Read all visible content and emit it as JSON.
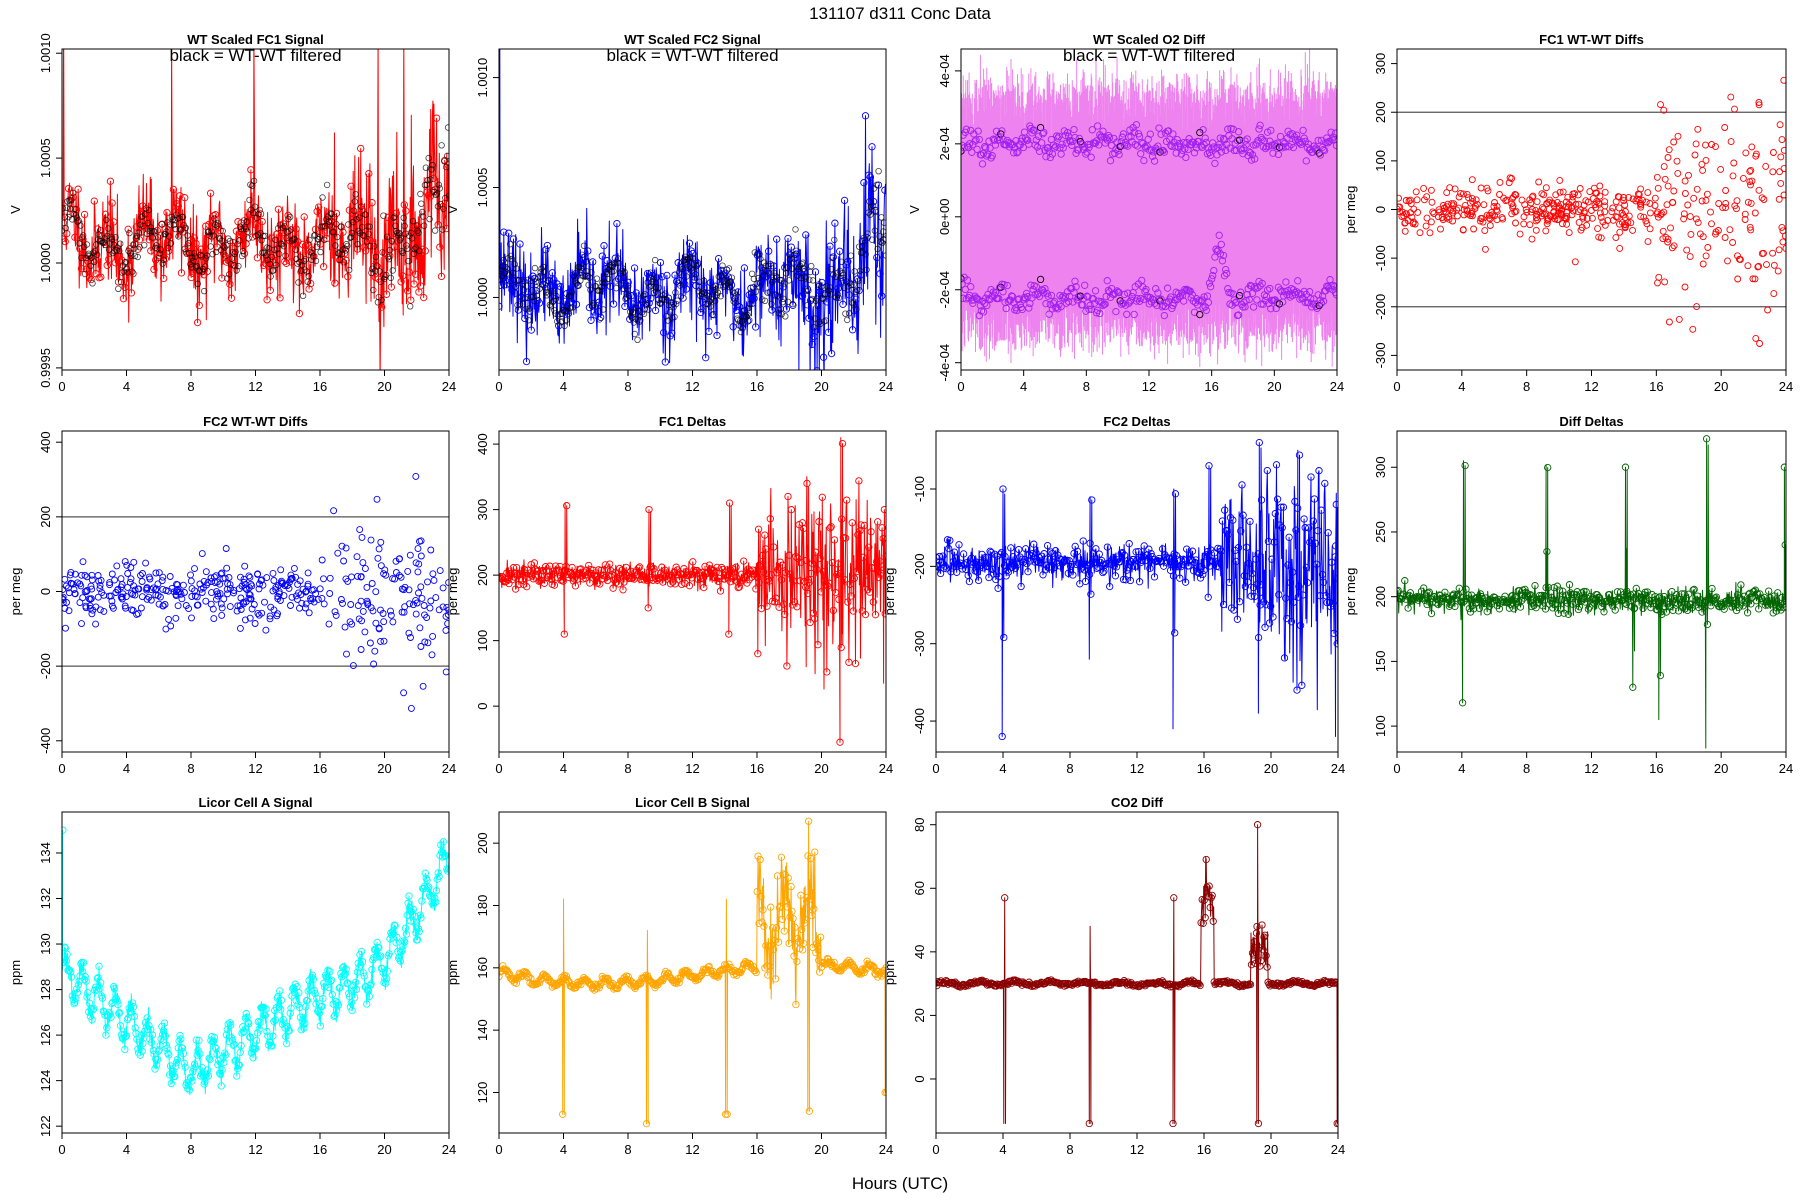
{
  "title": "131107   d311   Conc Data",
  "xlabel": "Hours (UTC)",
  "chart_data": [
    {
      "id": "wt-scaled-fc1-signal",
      "type": "line",
      "title": "WT Scaled FC1 Signal",
      "note": "black = WT-WT filtered",
      "ylabel": "V",
      "color": "#ff0000",
      "overlay_color": "#000000",
      "xlim": [
        0,
        24
      ],
      "ylim": [
        0.99949,
        1.00102
      ],
      "xticks": [
        0,
        4,
        8,
        12,
        16,
        20,
        24
      ],
      "xtick_labels": [
        "0",
        "4",
        "8",
        "12",
        "16",
        "20",
        "24"
      ],
      "yticks": [
        0.9995,
        1.0,
        1.0005,
        1.001
      ],
      "ytick_labels": [
        "0.9995",
        "1.0000",
        "1.0005",
        "1.0010"
      ],
      "gen": {
        "kind": "signal",
        "seed": 11,
        "base": 1.0001,
        "osc": 9e-05,
        "noise": 0.00011,
        "trend_end": 0.00025,
        "late_amp": 0.00015,
        "n": 720,
        "overlay_n": 420,
        "spikes": [
          [
            0.1,
            1.0012
          ],
          [
            6.8,
            1.0011
          ],
          [
            11.9,
            1.0011
          ],
          [
            16.9,
            1.00062
          ],
          [
            19.6,
            1.0011
          ],
          [
            21.2,
            1.0011
          ]
        ]
      }
    },
    {
      "id": "wt-scaled-fc2-signal",
      "type": "line",
      "title": "WT Scaled FC2 Signal",
      "note": "black = WT-WT filtered",
      "ylabel": "V",
      "color": "#0000ff",
      "overlay_color": "#000000",
      "xlim": [
        0,
        24
      ],
      "ylim": [
        0.99967,
        1.00113
      ],
      "xticks": [
        0,
        4,
        8,
        12,
        16,
        20,
        24
      ],
      "xtick_labels": [
        "0",
        "4",
        "8",
        "12",
        "16",
        "20",
        "24"
      ],
      "yticks": [
        1.0,
        1.0005,
        1.001
      ],
      "ytick_labels": [
        "1.0000",
        "1.0005",
        "1.0010"
      ],
      "gen": {
        "kind": "signal",
        "seed": 23,
        "base": 1.00003,
        "osc": 8e-05,
        "noise": 0.0001,
        "trend_end": 0.0003,
        "late_amp": 0.00012,
        "n": 720,
        "overlay_n": 420,
        "spikes": [
          [
            0.05,
            1.0012
          ],
          [
            18.6,
            0.99966
          ]
        ]
      }
    },
    {
      "id": "wt-scaled-o2-diff",
      "type": "line",
      "title": "WT Scaled O2 Diff",
      "note": "black = WT-WT filtered",
      "ylabel": "V",
      "color": "#ee82ee",
      "point_color": "#a020f0",
      "overlay_color": "#000000",
      "xlim": [
        0,
        24
      ],
      "ylim": [
        -0.00042,
        0.00046
      ],
      "xticks": [
        0,
        4,
        8,
        12,
        16,
        20,
        24
      ],
      "xtick_labels": [
        "0",
        "4",
        "8",
        "12",
        "16",
        "20",
        "24"
      ],
      "yticks": [
        -0.0004,
        -0.0002,
        0,
        0.0002,
        0.0004
      ],
      "ytick_labels": [
        "-4e-04",
        "-2e-04",
        "0e+00",
        "2e-04",
        "4e-04"
      ],
      "gen": {
        "kind": "bands",
        "seed": 37,
        "upper": 0.0002,
        "lower": -0.00022,
        "spread": 1.5e-05,
        "fill_top": 0.00033,
        "fill_bottom": -0.00031,
        "n": 700
      }
    },
    {
      "id": "fc1-wt-wt-diffs",
      "type": "scatter",
      "title": "FC1 WT-WT Diffs",
      "ylabel": "per meg",
      "color": "#ff0000",
      "xlim": [
        0,
        24
      ],
      "ylim": [
        -330,
        330
      ],
      "xticks": [
        0,
        4,
        8,
        12,
        16,
        20,
        24
      ],
      "xtick_labels": [
        "0",
        "4",
        "8",
        "12",
        "16",
        "20",
        "24"
      ],
      "yticks": [
        -300,
        -200,
        -100,
        0,
        100,
        200,
        300
      ],
      "ytick_labels": [
        "-300",
        "-200",
        "-100",
        "0",
        "100",
        "200",
        "300"
      ],
      "hlines": [
        200,
        -200
      ],
      "gen": {
        "kind": "scatter",
        "seed": 51,
        "n": 480,
        "spread_early": 30,
        "spread_late": 120,
        "late_start": 16
      }
    },
    {
      "id": "fc2-wt-wt-diffs",
      "type": "scatter",
      "title": "FC2 WT-WT Diffs",
      "ylabel": "per meg",
      "color": "#0000ff",
      "xlim": [
        0,
        24
      ],
      "ylim": [
        -430,
        430
      ],
      "xticks": [
        0,
        4,
        8,
        12,
        16,
        20,
        24
      ],
      "xtick_labels": [
        "0",
        "4",
        "8",
        "12",
        "16",
        "20",
        "24"
      ],
      "yticks": [
        -400,
        -200,
        0,
        200,
        400
      ],
      "ytick_labels": [
        "-400",
        "-200",
        "0",
        "200",
        "400"
      ],
      "hlines": [
        200,
        -200
      ],
      "gen": {
        "kind": "scatter",
        "seed": 63,
        "n": 460,
        "spread_early": 40,
        "spread_late": 100,
        "late_start": 16
      }
    },
    {
      "id": "fc1-deltas",
      "type": "line",
      "title": "FC1 Deltas",
      "ylabel": "per meg",
      "color": "#ff0000",
      "xlim": [
        0,
        24
      ],
      "ylim": [
        -70,
        420
      ],
      "xticks": [
        0,
        4,
        8,
        12,
        16,
        20,
        24
      ],
      "xtick_labels": [
        "0",
        "4",
        "8",
        "12",
        "16",
        "20",
        "24"
      ],
      "yticks": [
        0,
        100,
        200,
        300,
        400
      ],
      "ytick_labels": [
        "0",
        "100",
        "200",
        "300",
        "400"
      ],
      "gen": {
        "kind": "deltas",
        "seed": 71,
        "base": 200,
        "noise": 10,
        "n": 700,
        "late_start": 16,
        "late_noise": 55,
        "events": [
          [
            4.1,
            110,
            310
          ],
          [
            9.3,
            150,
            300
          ],
          [
            14.3,
            110,
            310
          ],
          [
            16.1,
            80,
            270
          ],
          [
            19.1,
            60,
            340
          ],
          [
            21.2,
            -55,
            410
          ],
          [
            23.9,
            35,
            300
          ]
        ]
      }
    },
    {
      "id": "fc2-deltas",
      "type": "line",
      "title": "FC2 Deltas",
      "ylabel": "per meg",
      "color": "#0000ff",
      "xlim": [
        0,
        24
      ],
      "ylim": [
        -440,
        -25
      ],
      "xticks": [
        0,
        4,
        8,
        12,
        16,
        20,
        24
      ],
      "xtick_labels": [
        "0",
        "4",
        "8",
        "12",
        "16",
        "20",
        "24"
      ],
      "yticks": [
        -400,
        -300,
        -200,
        -100
      ],
      "ytick_labels": [
        "-400",
        "-300",
        "-200",
        "-100"
      ],
      "gen": {
        "kind": "deltas",
        "seed": 83,
        "base": -195,
        "noise": 12,
        "n": 700,
        "late_start": 17,
        "late_noise": 60,
        "events": [
          [
            4.0,
            -420,
            -100
          ],
          [
            9.2,
            -320,
            -110
          ],
          [
            14.2,
            -410,
            -100
          ],
          [
            16.3,
            -240,
            -70
          ],
          [
            19.3,
            -390,
            -40
          ],
          [
            21.6,
            -360,
            -50
          ],
          [
            23.9,
            -420,
            -120
          ]
        ]
      }
    },
    {
      "id": "diff-deltas",
      "type": "line",
      "title": "Diff Deltas",
      "ylabel": "per meg",
      "color": "#006400",
      "xlim": [
        0,
        24
      ],
      "ylim": [
        80,
        328
      ],
      "xticks": [
        0,
        4,
        8,
        12,
        16,
        20,
        24
      ],
      "xtick_labels": [
        "0",
        "4",
        "8",
        "12",
        "16",
        "20",
        "24"
      ],
      "yticks": [
        100,
        150,
        200,
        250,
        300
      ],
      "ytick_labels": [
        "100",
        "150",
        "200",
        "250",
        "300"
      ],
      "gen": {
        "kind": "deltas",
        "seed": 97,
        "base": 197,
        "noise": 5,
        "n": 700,
        "late_start": 99,
        "late_noise": 5,
        "events": [
          [
            4.1,
            118,
            305
          ],
          [
            9.2,
            190,
            302
          ],
          [
            14.1,
            195,
            300
          ],
          [
            14.6,
            130,
            200
          ],
          [
            16.2,
            105,
            190
          ],
          [
            19.1,
            83,
            322
          ],
          [
            23.9,
            200,
            300
          ]
        ]
      }
    },
    {
      "id": "licor-cell-a-signal",
      "type": "line",
      "title": "Licor Cell A Signal",
      "ylabel": "ppm",
      "color": "#00ffff",
      "xlim": [
        0,
        24
      ],
      "ylim": [
        121.7,
        135.8
      ],
      "xticks": [
        0,
        4,
        8,
        12,
        16,
        20,
        24
      ],
      "xtick_labels": [
        "0",
        "4",
        "8",
        "12",
        "16",
        "20",
        "24"
      ],
      "yticks": [
        122,
        124,
        126,
        128,
        130,
        132,
        134
      ],
      "ytick_labels": [
        "122",
        "124",
        "126",
        "128",
        "130",
        "132",
        "134"
      ],
      "gen": {
        "kind": "licor_a",
        "seed": 101,
        "n": 900
      }
    },
    {
      "id": "licor-cell-b-signal",
      "type": "line",
      "title": "Licor Cell B Signal",
      "ylabel": "ppm",
      "color": "#ffa500",
      "xlim": [
        0,
        24
      ],
      "ylim": [
        107,
        210
      ],
      "xticks": [
        0,
        4,
        8,
        12,
        16,
        20,
        24
      ],
      "xtick_labels": [
        "0",
        "4",
        "8",
        "12",
        "16",
        "20",
        "24"
      ],
      "yticks": [
        120,
        140,
        160,
        180,
        200
      ],
      "ytick_labels": [
        "120",
        "140",
        "160",
        "180",
        "200"
      ],
      "gen": {
        "kind": "licor_b",
        "seed": 113,
        "n": 800,
        "events": [
          [
            4.0,
            113,
            182
          ],
          [
            9.2,
            110,
            172
          ],
          [
            14.1,
            113,
            182
          ],
          [
            19.2,
            114,
            207
          ],
          [
            24.0,
            120,
            158
          ]
        ]
      }
    },
    {
      "id": "co2-diff",
      "type": "line",
      "title": "CO2 Diff",
      "ylabel": "ppm",
      "color": "#8b0000",
      "xlim": [
        0,
        24
      ],
      "ylim": [
        -17,
        84
      ],
      "xticks": [
        0,
        4,
        8,
        12,
        16,
        20,
        24
      ],
      "xtick_labels": [
        "0",
        "4",
        "8",
        "12",
        "16",
        "20",
        "24"
      ],
      "yticks": [
        0,
        20,
        40,
        60,
        80
      ],
      "ytick_labels": [
        "0",
        "20",
        "40",
        "60",
        "80"
      ],
      "gen": {
        "kind": "co2",
        "seed": 127,
        "n": 800,
        "events": [
          [
            4.1,
            -14,
            57
          ],
          [
            9.2,
            -14,
            48
          ],
          [
            14.2,
            -14,
            57
          ],
          [
            19.2,
            -14,
            80
          ],
          [
            24.0,
            -14,
            30
          ]
        ]
      }
    }
  ]
}
